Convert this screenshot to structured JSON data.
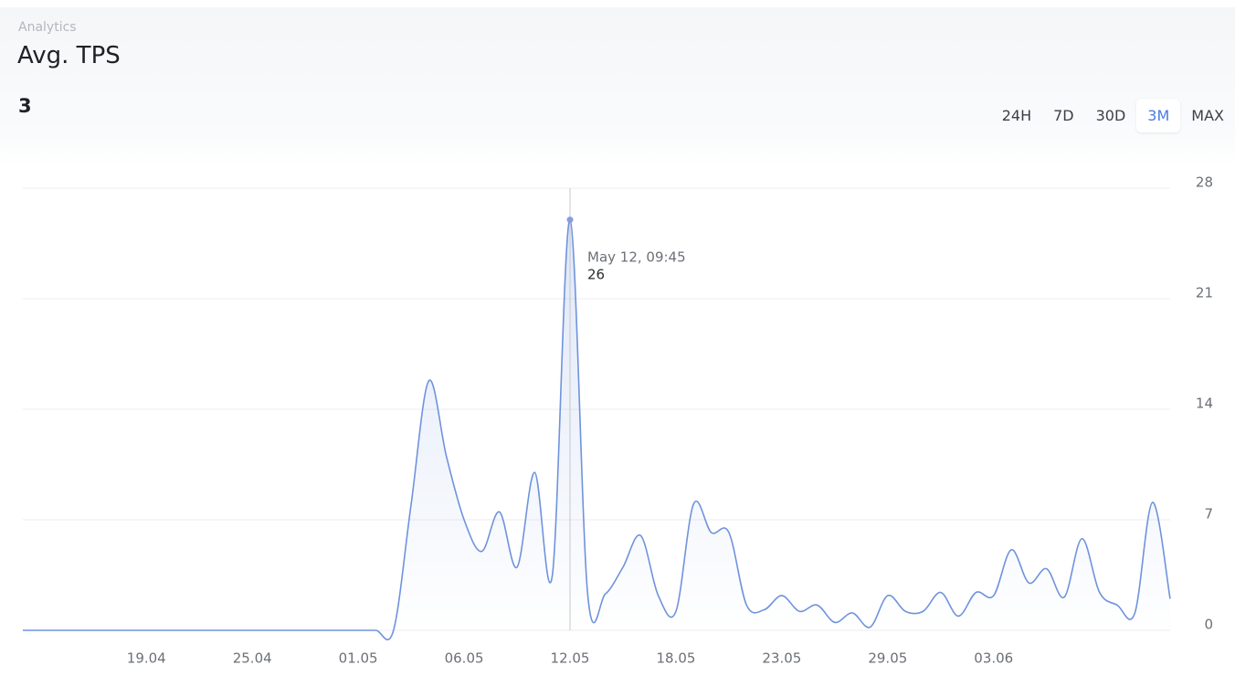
{
  "header": {
    "section": "Analytics",
    "title": "Avg. TPS",
    "current": "3"
  },
  "ranges": [
    "24H",
    "7D",
    "30D",
    "3M",
    "MAX"
  ],
  "active_range": "3M",
  "chart_data": {
    "type": "area",
    "categories": [
      null,
      null,
      null,
      null,
      null,
      null,
      null,
      "19.04",
      null,
      null,
      null,
      null,
      null,
      "25.04",
      null,
      null,
      null,
      null,
      null,
      "01.05",
      null,
      null,
      null,
      null,
      null,
      "06.05",
      null,
      null,
      null,
      null,
      null,
      "12.05",
      null,
      null,
      null,
      null,
      null,
      "18.05",
      null,
      null,
      null,
      null,
      null,
      "23.05",
      null,
      null,
      null,
      null,
      null,
      "29.05",
      null,
      null,
      null,
      null,
      null,
      "03.06",
      null,
      null,
      null,
      null,
      null,
      null,
      null,
      null,
      null,
      null
    ],
    "series": [
      {
        "color": "#6f93dc",
        "values": [
          0,
          0,
          0,
          0,
          0,
          0,
          0,
          0,
          0,
          0,
          0,
          0,
          0,
          0,
          0,
          0,
          0,
          0,
          0,
          0,
          0,
          0,
          8,
          15.8,
          11,
          7,
          5,
          7.5,
          4,
          10,
          3.5,
          26,
          2.3,
          2.3,
          4,
          6,
          2.2,
          1.2,
          8,
          6.2,
          6.2,
          1.6,
          1.3,
          2.2,
          1.2,
          1.6,
          0.5,
          1.1,
          0.2,
          2.2,
          1.2,
          1.2,
          2.4,
          0.9,
          2.4,
          2.2,
          5.1,
          3,
          3.9,
          2.1,
          5.8,
          2.4,
          1.6,
          1.1,
          8.1,
          2
        ]
      }
    ],
    "ylim": [
      0,
      28
    ],
    "yticks": [
      0,
      7,
      14,
      21,
      28
    ],
    "grid": true,
    "tooltip": {
      "title": "May 12, 09:45"
    }
  }
}
